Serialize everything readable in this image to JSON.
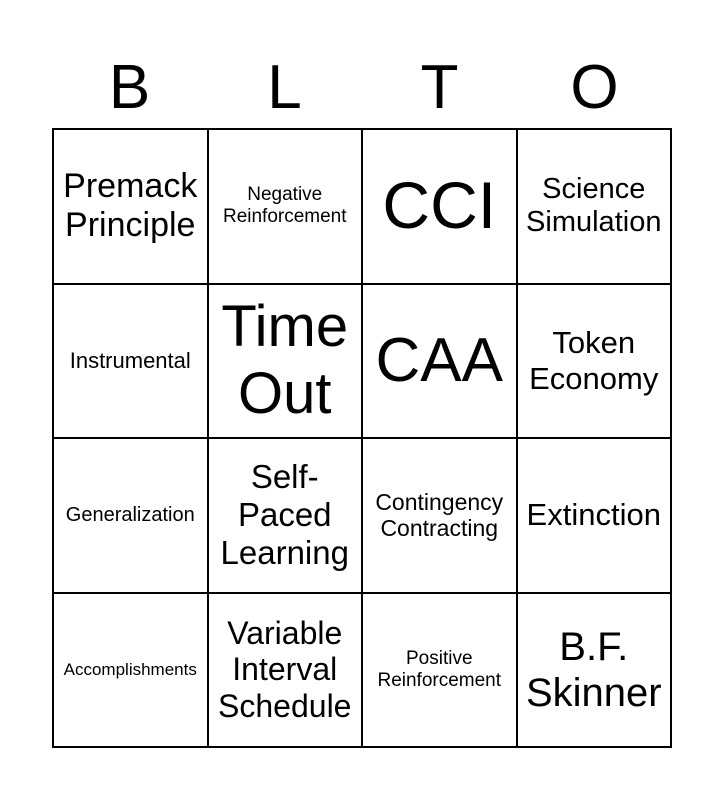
{
  "header": [
    "B",
    "L",
    "T",
    "O"
  ],
  "cells": [
    {
      "text": "Premack Principle",
      "size": 34
    },
    {
      "text": "Negative Reinforcement",
      "size": 19
    },
    {
      "text": "CCI",
      "size": 66
    },
    {
      "text": "Science Simulation",
      "size": 29
    },
    {
      "text": "Instrumental",
      "size": 22
    },
    {
      "text": "Time Out",
      "size": 58
    },
    {
      "text": "CAA",
      "size": 62
    },
    {
      "text": "Token Economy",
      "size": 31
    },
    {
      "text": "Generalization",
      "size": 20
    },
    {
      "text": "Self-Paced Learning",
      "size": 33
    },
    {
      "text": "Contingency Contracting",
      "size": 23
    },
    {
      "text": "Extinction",
      "size": 31
    },
    {
      "text": "Accomplishments",
      "size": 17
    },
    {
      "text": "Variable Interval Schedule",
      "size": 32
    },
    {
      "text": "Positive Reinforcement",
      "size": 19
    },
    {
      "text": "B.F. Skinner",
      "size": 40
    }
  ]
}
